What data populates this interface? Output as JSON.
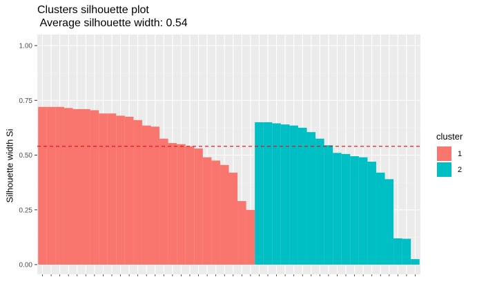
{
  "chart_data": {
    "type": "bar",
    "title_lines": [
      "Clusters silhouette plot",
      " Average silhouette width: 0.54"
    ],
    "xlabel": "",
    "ylabel": "Silhouette width Si",
    "ylim": [
      0,
      1.0
    ],
    "yticks": [
      "0.00",
      "0.25",
      "0.50",
      "0.75",
      "1.00"
    ],
    "ytick_values": [
      0,
      0.25,
      0.5,
      0.75,
      1.0
    ],
    "average_line": 0.54,
    "legend_title": "cluster",
    "legend_position": "right",
    "grid": true,
    "series": [
      {
        "name": "1",
        "color": "#F8766D",
        "values": [
          0.72,
          0.72,
          0.72,
          0.715,
          0.71,
          0.71,
          0.705,
          0.69,
          0.69,
          0.68,
          0.675,
          0.66,
          0.635,
          0.63,
          0.575,
          0.555,
          0.55,
          0.54,
          0.53,
          0.49,
          0.475,
          0.455,
          0.42,
          0.29,
          0.25
        ]
      },
      {
        "name": "2",
        "color": "#00BFC4",
        "values": [
          0.65,
          0.65,
          0.645,
          0.64,
          0.635,
          0.625,
          0.605,
          0.575,
          0.545,
          0.51,
          0.505,
          0.495,
          0.49,
          0.47,
          0.42,
          0.39,
          0.12,
          0.118,
          0.025
        ]
      }
    ]
  }
}
